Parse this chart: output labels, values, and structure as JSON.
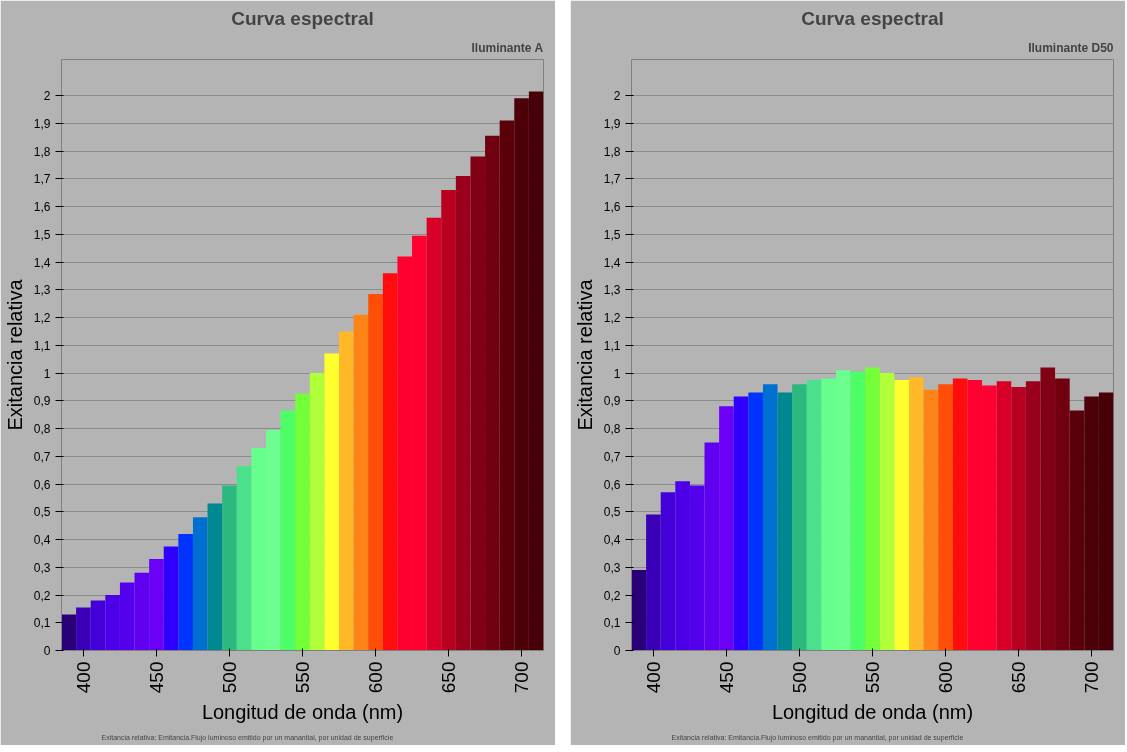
{
  "chart_data": [
    {
      "type": "bar",
      "title": "Curva espectral",
      "subtitle": "Iluminante A",
      "xlabel": "Longitud de onda (nm)",
      "ylabel": "Exitancia relativa",
      "annotations": [
        "Exitancia relativa: Emitancia.Flujo luminoso emitido por un manantial, por unidad de superficie"
      ],
      "x": [
        390,
        400,
        410,
        420,
        430,
        440,
        450,
        460,
        470,
        480,
        490,
        500,
        510,
        520,
        530,
        540,
        550,
        560,
        570,
        580,
        590,
        600,
        610,
        620,
        630,
        640,
        650,
        660,
        670,
        680,
        690,
        700,
        710
      ],
      "values": [
        0.13,
        0.155,
        0.18,
        0.2,
        0.245,
        0.28,
        0.33,
        0.375,
        0.42,
        0.48,
        0.53,
        0.595,
        0.665,
        0.73,
        0.795,
        0.865,
        0.925,
        1.0,
        1.07,
        1.15,
        1.21,
        1.285,
        1.36,
        1.42,
        1.495,
        1.56,
        1.66,
        1.71,
        1.78,
        1.855,
        1.91,
        1.99,
        2.015
      ],
      "colors": [
        "#2a0078",
        "#3a00b8",
        "#4400d8",
        "#4c00e8",
        "#5500ec",
        "#6000f0",
        "#6a00f5",
        "#3000ff",
        "#0033ff",
        "#0070d0",
        "#008890",
        "#2db880",
        "#4be08c",
        "#66ff8c",
        "#6cff90",
        "#4cff66",
        "#72ff38",
        "#b0ff38",
        "#ffff30",
        "#ffb828",
        "#ff8418",
        "#ff4e08",
        "#ff0c0c",
        "#ff0030",
        "#ff0030",
        "#d80028",
        "#b80020",
        "#98001c",
        "#800014",
        "#700010",
        "#5a0008",
        "#4c0008",
        "#480008"
      ],
      "xlim": [
        385,
        715
      ],
      "xticks": [
        400,
        450,
        500,
        550,
        600,
        650,
        700
      ],
      "ylim": [
        0,
        2.13
      ],
      "yticks": [
        0,
        {
          "value": 0.1,
          "label": "0,1"
        },
        {
          "value": 0.2,
          "label": "0,2"
        },
        {
          "value": 0.3,
          "label": "0,3"
        },
        {
          "value": 0.4,
          "label": "0,4"
        },
        {
          "value": 0.5,
          "label": "0,5"
        },
        {
          "value": 0.6,
          "label": "0,6"
        },
        {
          "value": 0.7,
          "label": "0,7"
        },
        {
          "value": 0.8,
          "label": "0,8"
        },
        {
          "value": 0.9,
          "label": "0,9"
        },
        1,
        {
          "value": 1.1,
          "label": "1,1"
        },
        {
          "value": 1.2,
          "label": "1,2"
        },
        {
          "value": 1.3,
          "label": "1,3"
        },
        {
          "value": 1.4,
          "label": "1,4"
        },
        {
          "value": 1.5,
          "label": "1,5"
        },
        {
          "value": 1.6,
          "label": "1,6"
        },
        {
          "value": 1.7,
          "label": "1,7"
        },
        {
          "value": 1.8,
          "label": "1,8"
        },
        {
          "value": 1.9,
          "label": "1,9"
        },
        2
      ],
      "grid": "y",
      "legend": false
    },
    {
      "type": "bar",
      "title": "Curva espectral",
      "subtitle": "Iluminante D50",
      "xlabel": "Longitud de onda (nm)",
      "ylabel": "Exitancia relativa",
      "annotations": [
        "Exitancia relativa: Emitancia.Flujo luminoso emitido por un manantial, por unidad de superficie"
      ],
      "x": [
        390,
        400,
        410,
        420,
        430,
        440,
        450,
        460,
        470,
        480,
        490,
        500,
        510,
        520,
        530,
        540,
        550,
        560,
        570,
        580,
        590,
        600,
        610,
        620,
        630,
        640,
        650,
        660,
        670,
        680,
        690,
        700,
        710
      ],
      "values": [
        0.29,
        0.49,
        0.57,
        0.61,
        0.595,
        0.75,
        0.88,
        0.915,
        0.93,
        0.96,
        0.93,
        0.96,
        0.975,
        0.98,
        1.01,
        1.005,
        1.02,
        1.0,
        0.975,
        0.985,
        0.94,
        0.96,
        0.98,
        0.975,
        0.955,
        0.97,
        0.95,
        0.97,
        1.02,
        0.98,
        0.865,
        0.915,
        0.93
      ],
      "colors": [
        "#2a0078",
        "#3a00b8",
        "#4400d8",
        "#4c00e8",
        "#5500ec",
        "#6000f0",
        "#6a00f5",
        "#3000ff",
        "#0033ff",
        "#0070d0",
        "#008890",
        "#2db880",
        "#4be08c",
        "#66ff8c",
        "#6cff90",
        "#4cff66",
        "#72ff38",
        "#b0ff38",
        "#ffff30",
        "#ffb828",
        "#ff8418",
        "#ff4e08",
        "#ff0c0c",
        "#ff0030",
        "#ff0030",
        "#d80028",
        "#b80020",
        "#98001c",
        "#800014",
        "#700010",
        "#5a0008",
        "#4c0008",
        "#480008"
      ],
      "xlim": [
        385,
        715
      ],
      "xticks": [
        400,
        450,
        500,
        550,
        600,
        650,
        700
      ],
      "ylim": [
        0,
        2.13
      ],
      "yticks": [
        0,
        {
          "value": 0.1,
          "label": "0,1"
        },
        {
          "value": 0.2,
          "label": "0,2"
        },
        {
          "value": 0.3,
          "label": "0,3"
        },
        {
          "value": 0.4,
          "label": "0,4"
        },
        {
          "value": 0.5,
          "label": "0,5"
        },
        {
          "value": 0.6,
          "label": "0,6"
        },
        {
          "value": 0.7,
          "label": "0,7"
        },
        {
          "value": 0.8,
          "label": "0,8"
        },
        {
          "value": 0.9,
          "label": "0,9"
        },
        1,
        {
          "value": 1.1,
          "label": "1,1"
        },
        {
          "value": 1.2,
          "label": "1,2"
        },
        {
          "value": 1.3,
          "label": "1,3"
        },
        {
          "value": 1.4,
          "label": "1,4"
        },
        {
          "value": 1.5,
          "label": "1,5"
        },
        {
          "value": 1.6,
          "label": "1,6"
        },
        {
          "value": 1.7,
          "label": "1,7"
        },
        {
          "value": 1.8,
          "label": "1,8"
        },
        {
          "value": 1.9,
          "label": "1,9"
        },
        2
      ],
      "grid": "y",
      "legend": false
    }
  ]
}
